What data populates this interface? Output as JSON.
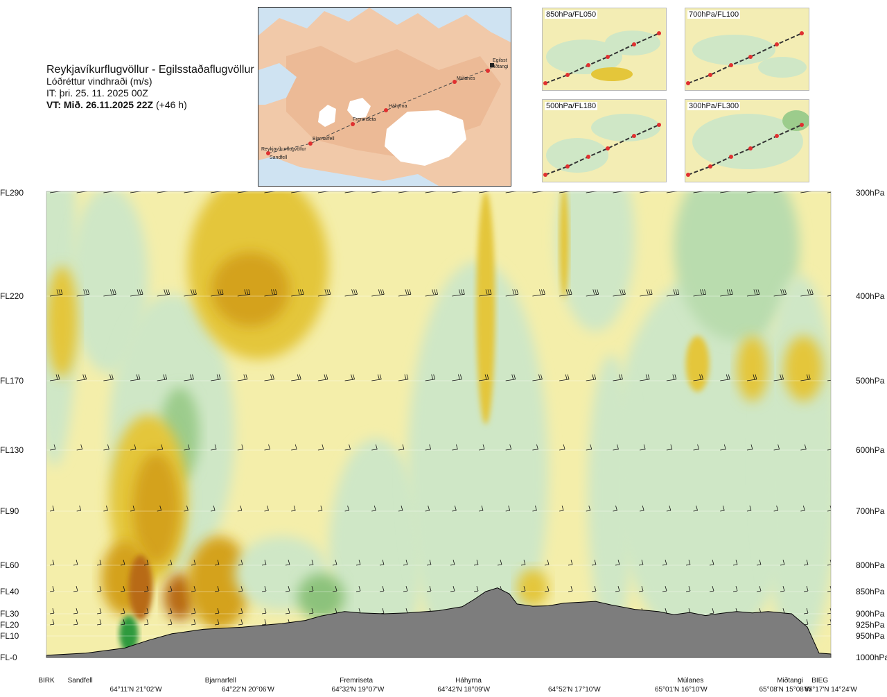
{
  "header": {
    "route": "Reykjavíkurflugvöllur - Egilsstaðaflugvöllur",
    "parameter": "Lóðréttur vindhraði (m/s)",
    "issue_time": "IT: þri. 25. 11. 2025 00Z",
    "valid_time": "VT: Mið. 26.11.2025 22Z",
    "lead_time": "(+46 h)"
  },
  "map": {
    "stations": [
      "Reykjavíkurflugvöllur",
      "Sandfell",
      "Bjarnarfell",
      "Fremriseta",
      "Háhyrna",
      "Múlanes",
      "Miðtangi",
      "Egilsst"
    ]
  },
  "mini_maps": [
    {
      "label": "850hPa/FL050"
    },
    {
      "label": "700hPa/FL100"
    },
    {
      "label": "500hPa/FL180"
    },
    {
      "label": "300hPa/FL300"
    }
  ],
  "chart_data": {
    "type": "heatmap",
    "variable": "Lóðréttur vindhraði (m/s)",
    "left_axis": [
      {
        "label": "FL290",
        "hpa": 300
      },
      {
        "label": "FL220",
        "hpa": 400
      },
      {
        "label": "FL170",
        "hpa": 500
      },
      {
        "label": "FL130",
        "hpa": 600
      },
      {
        "label": "FL90",
        "hpa": 700
      },
      {
        "label": "FL60",
        "hpa": 800
      },
      {
        "label": "FL40",
        "hpa": 850
      },
      {
        "label": "FL30",
        "hpa": 900
      },
      {
        "label": "FL20",
        "hpa": 925
      },
      {
        "label": "FL10",
        "hpa": 950
      },
      {
        "label": "FL-0",
        "hpa": 1000
      }
    ],
    "right_axis": [
      "300hPa",
      "400hPa",
      "500hPa",
      "600hPa",
      "700hPa",
      "800hPa",
      "850hPa",
      "900hPa",
      "925hPa",
      "950hPa",
      "1000hPa"
    ],
    "y_range_hpa": [
      1000,
      300
    ],
    "stations_bottom": [
      {
        "name": "BIRK",
        "pos": 0.0
      },
      {
        "name": "Sandfell",
        "pos": 0.043
      },
      {
        "name": "Bjarnarfell",
        "pos": 0.222
      },
      {
        "name": "Fremriseta",
        "pos": 0.395
      },
      {
        "name": "Háhyrna",
        "pos": 0.538
      },
      {
        "name": "Múlanes",
        "pos": 0.821
      },
      {
        "name": "Miðtangi",
        "pos": 0.948
      },
      {
        "name": "BIEG",
        "pos": 0.986
      }
    ],
    "coords_bottom": [
      {
        "name": "64°11'N 21°02'W",
        "pos": 0.114
      },
      {
        "name": "64°22'N 20°06'W",
        "pos": 0.257
      },
      {
        "name": "64°32'N 19°07'W",
        "pos": 0.397
      },
      {
        "name": "64°42'N 18°09'W",
        "pos": 0.532
      },
      {
        "name": "64°52'N 17°10'W",
        "pos": 0.673
      },
      {
        "name": "65°01'N 16°10'W",
        "pos": 0.809
      },
      {
        "name": "65°08'N 15°08'W",
        "pos": 0.942
      },
      {
        "name": "65°17'N 14°24'W",
        "pos": 1.0
      }
    ],
    "terrain_profile_hpa": [
      [
        0,
        995
      ],
      [
        0.05,
        990
      ],
      [
        0.1,
        978
      ],
      [
        0.13,
        960
      ],
      [
        0.16,
        945
      ],
      [
        0.2,
        935
      ],
      [
        0.25,
        930
      ],
      [
        0.3,
        922
      ],
      [
        0.33,
        915
      ],
      [
        0.35,
        905
      ],
      [
        0.38,
        895
      ],
      [
        0.4,
        898
      ],
      [
        0.43,
        900
      ],
      [
        0.46,
        898
      ],
      [
        0.5,
        893
      ],
      [
        0.53,
        884
      ],
      [
        0.545,
        868
      ],
      [
        0.56,
        850
      ],
      [
        0.575,
        843
      ],
      [
        0.59,
        855
      ],
      [
        0.6,
        878
      ],
      [
        0.62,
        883
      ],
      [
        0.64,
        882
      ],
      [
        0.66,
        876
      ],
      [
        0.68,
        874
      ],
      [
        0.7,
        872
      ],
      [
        0.72,
        880
      ],
      [
        0.75,
        890
      ],
      [
        0.78,
        895
      ],
      [
        0.8,
        902
      ],
      [
        0.82,
        897
      ],
      [
        0.84,
        904
      ],
      [
        0.86,
        899
      ],
      [
        0.88,
        895
      ],
      [
        0.9,
        898
      ],
      [
        0.92,
        895
      ],
      [
        0.95,
        900
      ],
      [
        0.97,
        930
      ],
      [
        0.985,
        990
      ],
      [
        1.0,
        992
      ]
    ]
  }
}
